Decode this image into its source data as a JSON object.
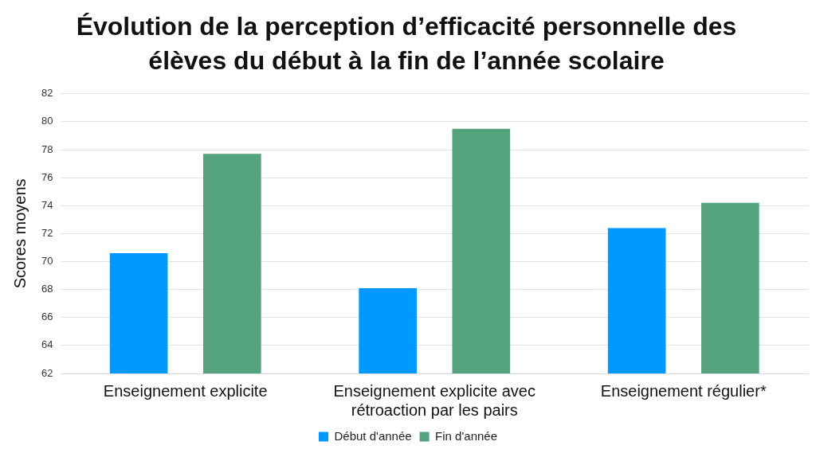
{
  "chart_data": {
    "type": "bar",
    "title": "Évolution de la perception d’efficacité personnelle des élèves du début à la fin de l’année scolaire",
    "ylabel": "Scores moyens",
    "categories": [
      "Enseignement explicite",
      "Enseignement explicite avec rétroaction par les pairs",
      "Enseignement régulier*"
    ],
    "series": [
      {
        "name": "Début d'année",
        "color": "#0099ff",
        "values": [
          70.6,
          68.1,
          72.4
        ]
      },
      {
        "name": "Fin d'année",
        "color": "#55a27e",
        "values": [
          77.7,
          79.5,
          74.2
        ]
      }
    ],
    "ylim": [
      62,
      82
    ],
    "yticks": [
      62,
      64,
      66,
      68,
      70,
      72,
      74,
      76,
      78,
      80,
      82
    ],
    "grid": "y",
    "legend": "bottom"
  }
}
